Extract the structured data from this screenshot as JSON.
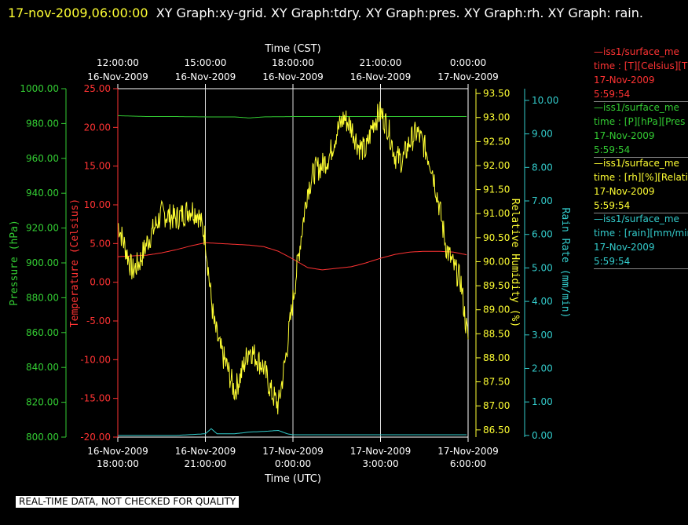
{
  "header": {
    "timestamp": "17-nov-2009,06:00:00",
    "graphs_text": "XY Graph:xy-grid.  XY Graph:tdry.  XY Graph:pres.  XY Graph:rh.  XY Graph: rain."
  },
  "footer": {
    "notice": "REAL-TIME DATA, NOT CHECKED FOR QUALITY"
  },
  "legend": [
    {
      "line1": "—iss1/surface_me",
      "line2": "time : [T][Celsius][T",
      "line3": "17-Nov-2009",
      "line4": "5:59:54",
      "color": "#ff3333"
    },
    {
      "line1": "—iss1/surface_me",
      "line2": "time : [P][hPa][Pres",
      "line3": "17-Nov-2009",
      "line4": "5:59:54",
      "color": "#33cc33"
    },
    {
      "line1": "—iss1/surface_me",
      "line2": "time : [rh][%][Relati",
      "line3": "17-Nov-2009",
      "line4": "5:59:54",
      "color": "#ffff33"
    },
    {
      "line1": "—iss1/surface_me",
      "line2": "time : [rain][mm/min",
      "line3": "17-Nov-2009",
      "line4": "5:59:54",
      "color": "#33cccc"
    }
  ],
  "chart_data": {
    "type": "line",
    "grid": "vertical lines at 3-hour ticks",
    "x_top": {
      "label": "Time (CST)",
      "ticks": [
        {
          "l1": "12:00:00",
          "l2": "16-Nov-2009"
        },
        {
          "l1": "15:00:00",
          "l2": "16-Nov-2009"
        },
        {
          "l1": "18:00:00",
          "l2": "16-Nov-2009"
        },
        {
          "l1": "21:00:00",
          "l2": "16-Nov-2009"
        },
        {
          "l1": "0:00:00",
          "l2": "17-Nov-2009"
        }
      ]
    },
    "x_bottom": {
      "label": "Time (UTC)",
      "range": [
        "16-Nov-2009 18:00:00",
        "17-Nov-2009 06:00:00"
      ],
      "ticks": [
        {
          "l1": "16-Nov-2009",
          "l2": "18:00:00"
        },
        {
          "l1": "16-Nov-2009",
          "l2": "21:00:00"
        },
        {
          "l1": "17-Nov-2009",
          "l2": "0:00:00"
        },
        {
          "l1": "17-Nov-2009",
          "l2": "3:00:00"
        },
        {
          "l1": "17-Nov-2009",
          "l2": "6:00:00"
        }
      ]
    },
    "axes": {
      "pressure": {
        "label": "Pressure (hPa)",
        "color": "#33cc33",
        "ylim": [
          800,
          1000
        ],
        "ticks": [
          "800.00",
          "820.00",
          "840.00",
          "860.00",
          "880.00",
          "900.00",
          "920.00",
          "940.00",
          "960.00",
          "980.00",
          "1000.00"
        ]
      },
      "temperature": {
        "label": "Temperature (Celsius)",
        "color": "#ff3333",
        "ylim": [
          -20,
          25
        ],
        "ticks": [
          "-20.00",
          "-15.00",
          "-10.00",
          "-5.00",
          "0.00",
          "5.00",
          "10.00",
          "15.00",
          "20.00",
          "25.00"
        ]
      },
      "rh": {
        "label": "Relative Humidity (%)",
        "color": "#ffff33",
        "ylim": [
          86.35,
          93.6
        ],
        "ticks": [
          "86.50",
          "87.00",
          "87.50",
          "88.00",
          "88.50",
          "89.00",
          "89.50",
          "90.00",
          "90.50",
          "91.00",
          "91.50",
          "92.00",
          "92.50",
          "93.00",
          "93.50"
        ]
      },
      "rain": {
        "label": "Rain Rate (mm/min)",
        "color": "#33cccc",
        "ylim": [
          -0.05,
          10.35
        ],
        "ticks": [
          "0.00",
          "1.00",
          "2.00",
          "3.00",
          "4.00",
          "5.00",
          "6.00",
          "7.00",
          "8.00",
          "9.00",
          "10.00"
        ]
      }
    },
    "series": [
      {
        "axis": "temperature",
        "color": "#ff3333",
        "x": [
          0,
          0.5,
          1,
          1.5,
          2,
          2.5,
          3,
          3.5,
          4,
          4.5,
          5,
          5.5,
          6,
          6.5,
          7,
          7.5,
          8,
          8.5,
          9,
          9.5,
          10,
          10.5,
          11,
          11.5,
          12
        ],
        "y": [
          3.3,
          3.4,
          3.5,
          3.8,
          4.2,
          4.7,
          5.1,
          5.0,
          4.9,
          4.8,
          4.6,
          4.0,
          3.0,
          1.9,
          1.6,
          1.8,
          2.0,
          2.5,
          3.1,
          3.6,
          3.9,
          4.0,
          4.0,
          3.9,
          3.5
        ]
      },
      {
        "axis": "pressure",
        "color": "#33cc33",
        "x": [
          0,
          1,
          2,
          3,
          4,
          4.5,
          5,
          6,
          7,
          8,
          9,
          10,
          11,
          12
        ],
        "y": [
          984.5,
          984.0,
          984.0,
          983.8,
          983.8,
          983.2,
          983.8,
          984.0,
          984.0,
          984.0,
          984.0,
          984.0,
          984.0,
          984.0
        ]
      },
      {
        "axis": "rh",
        "color": "#ffff33",
        "noisy": true,
        "x": [
          0,
          0.25,
          0.5,
          0.75,
          1,
          1.5,
          2,
          2.25,
          2.5,
          2.75,
          3,
          3.15,
          3.3,
          3.5,
          3.75,
          4,
          4.25,
          4.5,
          5,
          5.25,
          5.5,
          5.75,
          6,
          6.25,
          6.5,
          6.75,
          7,
          7.25,
          7.5,
          7.75,
          8,
          8.25,
          8.5,
          8.75,
          9,
          9.25,
          9.5,
          9.75,
          10,
          10.25,
          10.5,
          10.75,
          11,
          11.25,
          11.5,
          11.75,
          11.9,
          12
        ],
        "y": [
          90.8,
          90.3,
          89.8,
          90.0,
          90.4,
          91.0,
          90.9,
          91.0,
          91.1,
          91.0,
          90.5,
          89.5,
          88.7,
          88.2,
          87.8,
          87.3,
          87.7,
          88.2,
          87.8,
          87.3,
          87.0,
          88.0,
          89.2,
          90.4,
          91.5,
          91.9,
          92.0,
          92.2,
          92.7,
          93.0,
          92.8,
          92.4,
          92.3,
          92.9,
          93.1,
          92.8,
          92.2,
          92.1,
          92.5,
          92.7,
          92.4,
          92.0,
          91.2,
          90.3,
          89.9,
          89.6,
          88.8,
          88.4
        ]
      },
      {
        "axis": "rain",
        "color": "#33cccc",
        "x": [
          0,
          2,
          3,
          3.2,
          3.4,
          4,
          4.5,
          5,
          5.5,
          5.8,
          6,
          8,
          10,
          12
        ],
        "y": [
          0.0,
          0.0,
          0.05,
          0.2,
          0.05,
          0.05,
          0.1,
          0.12,
          0.15,
          0.05,
          0.02,
          0.02,
          0.02,
          0.02
        ]
      }
    ]
  }
}
